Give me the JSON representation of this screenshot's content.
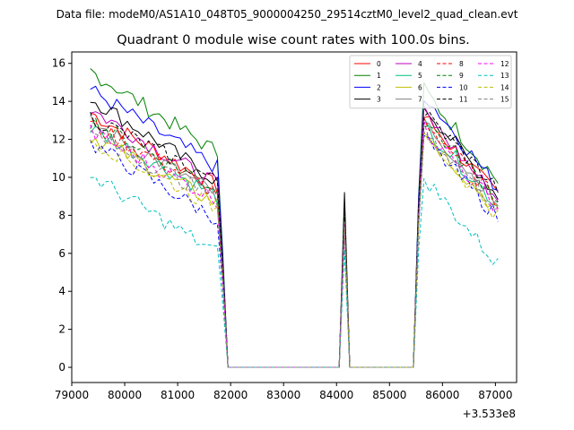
{
  "chart_data": {
    "type": "line",
    "suptitle": "Data file: modeM0/AS1A10_048T05_9000004250_29514cztM0_level2_quad_clean.evt",
    "title": "Quadrant 0 module wise count rates with 100.0s bins.",
    "xlabel": "",
    "ylabel": "",
    "x_offset_label": "+3.533e8",
    "xlim": [
      79000,
      87400
    ],
    "ylim": [
      -0.8,
      16.6
    ],
    "xticks": [
      79000,
      80000,
      81000,
      82000,
      83000,
      84000,
      85000,
      86000,
      87000
    ],
    "xtick_labels": [
      "79000",
      "80000",
      "81000",
      "82000",
      "83000",
      "84000",
      "85000",
      "86000",
      "87000"
    ],
    "yticks": [
      0,
      2,
      4,
      6,
      8,
      10,
      12,
      14,
      16
    ],
    "ytick_labels": [
      "0",
      "2",
      "4",
      "6",
      "8",
      "10",
      "12",
      "14",
      "16"
    ],
    "legend_position": "upper right",
    "legend_columns": 4,
    "segments": [
      {
        "x_start": 79350,
        "x_end": 87050,
        "n": 78
      }
    ],
    "note": "Each series is sampled at 100 s bins from 79350 to 87050 (78 points). Values are approximate readings.",
    "series": [
      {
        "name": "0",
        "color": "#ff0000",
        "dash": "solid",
        "start": 13.4,
        "end1": 9.5,
        "peak": 8.0,
        "start2": 13.2,
        "end2": 9.0
      },
      {
        "name": "1",
        "color": "#008000",
        "dash": "solid",
        "start": 15.6,
        "end1": 11.3,
        "peak": 8.4,
        "start2": 14.6,
        "end2": 9.8
      },
      {
        "name": "2",
        "color": "#0000ff",
        "dash": "solid",
        "start": 14.6,
        "end1": 10.5,
        "peak": 8.2,
        "start2": 14.4,
        "end2": 9.4
      },
      {
        "name": "3",
        "color": "#000000",
        "dash": "solid",
        "start": 14.2,
        "end1": 9.8,
        "peak": 9.2,
        "start2": 13.8,
        "end2": 9.0
      },
      {
        "name": "4",
        "color": "#bf00bf",
        "dash": "solid",
        "start": 13.6,
        "end1": 9.6,
        "peak": 7.9,
        "start2": 13.4,
        "end2": 8.8
      },
      {
        "name": "5",
        "color": "#00bf80",
        "dash": "solid",
        "start": 12.6,
        "end1": 9.0,
        "peak": 7.7,
        "start2": 12.8,
        "end2": 8.5
      },
      {
        "name": "6",
        "color": "#bfbf00",
        "dash": "solid",
        "start": 12.2,
        "end1": 8.6,
        "peak": 7.6,
        "start2": 12.4,
        "end2": 8.2
      },
      {
        "name": "7",
        "color": "#808080",
        "dash": "solid",
        "start": 12.9,
        "end1": 9.1,
        "peak": 7.8,
        "start2": 12.9,
        "end2": 8.6
      },
      {
        "name": "8",
        "color": "#ff0000",
        "dash": "dashed",
        "start": 12.8,
        "end1": 9.2,
        "peak": 7.8,
        "start2": 13.0,
        "end2": 8.7
      },
      {
        "name": "9",
        "color": "#008000",
        "dash": "dashed",
        "start": 13.0,
        "end1": 9.4,
        "peak": 8.0,
        "start2": 13.0,
        "end2": 8.9
      },
      {
        "name": "10",
        "color": "#0000ff",
        "dash": "dashed",
        "start": 11.8,
        "end1": 7.8,
        "peak": 7.2,
        "start2": 12.0,
        "end2": 7.9
      },
      {
        "name": "11",
        "color": "#000000",
        "dash": "dashed",
        "start": 13.2,
        "end1": 9.8,
        "peak": 8.1,
        "start2": 13.4,
        "end2": 9.4
      },
      {
        "name": "12",
        "color": "#ff00ff",
        "dash": "dashed",
        "start": 12.4,
        "end1": 8.8,
        "peak": 7.5,
        "start2": 12.6,
        "end2": 8.4
      },
      {
        "name": "13",
        "color": "#00bfbf",
        "dash": "dashed",
        "start": 10.1,
        "end1": 6.0,
        "peak": 6.2,
        "start2": 10.0,
        "end2": 5.4
      },
      {
        "name": "14",
        "color": "#bfbf00",
        "dash": "dashed",
        "start": 12.0,
        "end1": 8.4,
        "peak": 7.4,
        "start2": 12.2,
        "end2": 8.0
      },
      {
        "name": "15",
        "color": "#808080",
        "dash": "dashed",
        "start": 12.3,
        "end1": 8.9,
        "peak": 7.6,
        "start2": 12.5,
        "end2": 8.4
      }
    ]
  }
}
